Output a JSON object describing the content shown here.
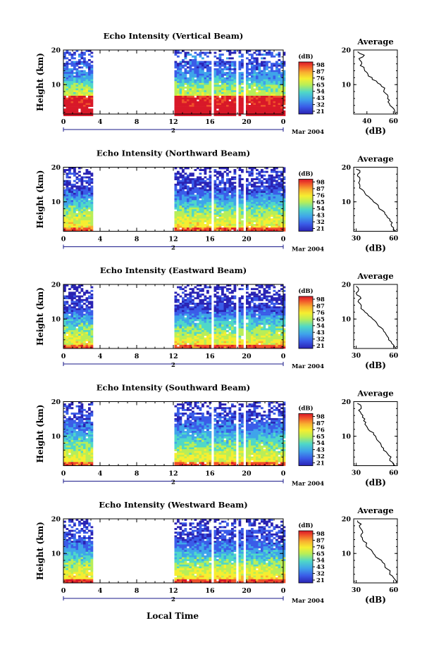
{
  "figure": {
    "month_label": "Mar 2004",
    "bottom_xlabel": "Local Time"
  },
  "chart_data": [
    {
      "type": "heatmap",
      "title": "Echo Intensity (Vertical Beam)",
      "ylabel": "Height (km)",
      "x_ticks": [
        "0",
        "4",
        "8",
        "12",
        "16",
        "20",
        "0"
      ],
      "x_range_hours": [
        0,
        24
      ],
      "y_ticks": [
        "20",
        "10"
      ],
      "ylim_km": [
        1.5,
        20
      ],
      "date_marker": "2",
      "colorbar": {
        "label": "(dB)",
        "ticks": [
          "98",
          "87",
          "76",
          "65",
          "54",
          "43",
          "32",
          "21"
        ]
      },
      "data_gaps_hours": [
        [
          3,
          12
        ],
        [
          16,
          16.3
        ],
        [
          18.7,
          18.9
        ],
        [
          19.4,
          19.7
        ]
      ],
      "profile": {
        "title": "Average",
        "xlabel": "(dB)",
        "x_ticks": [
          "40",
          "60"
        ],
        "xlim": [
          30,
          63
        ],
        "y_ticks": [
          "20",
          "10"
        ],
        "height_km": [
          19.5,
          18.5,
          17.5,
          16.5,
          15.5,
          14.5,
          13.5,
          12.5,
          11.5,
          10.5,
          9.5,
          8.5,
          7.5,
          6.5,
          5.5,
          4.5,
          3.5,
          2.5,
          1.5
        ],
        "dB": [
          33,
          38,
          34,
          36,
          35,
          38,
          40,
          41,
          44,
          48,
          51,
          53,
          54,
          56,
          57,
          57,
          59,
          61,
          62
        ]
      }
    },
    {
      "type": "heatmap",
      "title": "Echo Intensity (Northward Beam)",
      "ylabel": "Height (km)",
      "x_ticks": [
        "0",
        "4",
        "8",
        "12",
        "16",
        "20",
        "0"
      ],
      "x_range_hours": [
        0,
        24
      ],
      "y_ticks": [
        "20",
        "10"
      ],
      "ylim_km": [
        1.5,
        20
      ],
      "date_marker": "2",
      "colorbar": {
        "label": "(dB)",
        "ticks": [
          "98",
          "87",
          "76",
          "65",
          "54",
          "43",
          "32",
          "21"
        ]
      },
      "data_gaps_hours": [
        [
          3,
          12
        ],
        [
          16,
          16.3
        ],
        [
          18.7,
          18.9
        ],
        [
          19.4,
          19.7
        ]
      ],
      "profile": {
        "title": "Average",
        "xlabel": "(dB)",
        "x_ticks": [
          "30",
          "60"
        ],
        "xlim": [
          28,
          63
        ],
        "y_ticks": [
          "20",
          "10"
        ],
        "height_km": [
          19.5,
          18.5,
          17.5,
          16.5,
          15.5,
          14.5,
          13.5,
          12.5,
          11.5,
          10.5,
          9.5,
          8.5,
          7.5,
          6.5,
          5.5,
          4.5,
          3.5,
          2.5,
          1.5
        ],
        "dB": [
          30,
          33,
          31,
          33,
          32,
          33,
          35,
          37,
          40,
          43,
          46,
          48,
          51,
          53,
          55,
          57,
          58,
          60,
          62
        ]
      }
    },
    {
      "type": "heatmap",
      "title": "Echo Intensity (Eastward Beam)",
      "ylabel": "Height (km)",
      "x_ticks": [
        "0",
        "4",
        "8",
        "12",
        "16",
        "20",
        "0"
      ],
      "x_range_hours": [
        0,
        24
      ],
      "y_ticks": [
        "20",
        "10"
      ],
      "ylim_km": [
        1.5,
        20
      ],
      "date_marker": "2",
      "colorbar": {
        "label": "(dB)",
        "ticks": [
          "98",
          "87",
          "76",
          "65",
          "54",
          "43",
          "32",
          "21"
        ]
      },
      "data_gaps_hours": [
        [
          3,
          12
        ],
        [
          16,
          16.3
        ],
        [
          18.7,
          18.9
        ],
        [
          19.4,
          19.7
        ]
      ],
      "profile": {
        "title": "Average",
        "xlabel": "(dB)",
        "x_ticks": [
          "30",
          "60"
        ],
        "xlim": [
          28,
          63
        ],
        "y_ticks": [
          "20",
          "10"
        ],
        "height_km": [
          19.5,
          18.5,
          17.5,
          16.5,
          15.5,
          14.5,
          13.5,
          12.5,
          11.5,
          10.5,
          9.5,
          8.5,
          7.5,
          6.5,
          5.5,
          4.5,
          3.5,
          2.5,
          1.5
        ],
        "dB": [
          30,
          32,
          30,
          33,
          32,
          33,
          34,
          36,
          39,
          42,
          45,
          47,
          50,
          52,
          54,
          56,
          58,
          60,
          62
        ]
      }
    },
    {
      "type": "heatmap",
      "title": "Echo Intensity (Southward Beam)",
      "ylabel": "Height (km)",
      "x_ticks": [
        "0",
        "4",
        "8",
        "12",
        "16",
        "20",
        "0"
      ],
      "x_range_hours": [
        0,
        24
      ],
      "y_ticks": [
        "20",
        "10"
      ],
      "ylim_km": [
        1.5,
        20
      ],
      "date_marker": "2",
      "colorbar": {
        "label": "(dB)",
        "ticks": [
          "98",
          "87",
          "76",
          "65",
          "54",
          "43",
          "32",
          "21"
        ]
      },
      "data_gaps_hours": [
        [
          3,
          12
        ],
        [
          16,
          16.3
        ],
        [
          18.7,
          18.9
        ],
        [
          19.4,
          19.7
        ]
      ],
      "profile": {
        "title": "Average",
        "xlabel": "(dB)",
        "x_ticks": [
          "30",
          "60"
        ],
        "xlim": [
          28,
          63
        ],
        "y_ticks": [
          "20",
          "10"
        ],
        "height_km": [
          19.5,
          18.5,
          17.5,
          16.5,
          15.5,
          14.5,
          13.5,
          12.5,
          11.5,
          10.5,
          9.5,
          8.5,
          7.5,
          6.5,
          5.5,
          4.5,
          3.5,
          2.5,
          1.5
        ],
        "dB": [
          31,
          34,
          32,
          34,
          35,
          36,
          37,
          39,
          41,
          44,
          46,
          48,
          50,
          52,
          54,
          56,
          57,
          59,
          61
        ]
      }
    },
    {
      "type": "heatmap",
      "title": "Echo Intensity (Westward Beam)",
      "ylabel": "Height (km)",
      "x_ticks": [
        "0",
        "4",
        "8",
        "12",
        "16",
        "20",
        "0"
      ],
      "x_range_hours": [
        0,
        24
      ],
      "y_ticks": [
        "20",
        "10"
      ],
      "ylim_km": [
        1.5,
        20
      ],
      "date_marker": "2",
      "colorbar": {
        "label": "(dB)",
        "ticks": [
          "98",
          "87",
          "76",
          "65",
          "54",
          "43",
          "32",
          "21"
        ]
      },
      "data_gaps_hours": [
        [
          3,
          12
        ],
        [
          16,
          16.3
        ],
        [
          18.7,
          18.9
        ],
        [
          19.4,
          19.7
        ]
      ],
      "profile": {
        "title": "Average",
        "xlabel": "(dB)",
        "x_ticks": [
          "30",
          "60"
        ],
        "xlim": [
          28,
          63
        ],
        "y_ticks": [
          "20",
          "10"
        ],
        "height_km": [
          19.5,
          18.5,
          17.5,
          16.5,
          15.5,
          14.5,
          13.5,
          12.5,
          11.5,
          10.5,
          9.5,
          8.5,
          7.5,
          6.5,
          5.5,
          4.5,
          3.5,
          2.5,
          1.5
        ],
        "dB": [
          31,
          34,
          33,
          35,
          34,
          35,
          36,
          38,
          40,
          43,
          45,
          48,
          51,
          53,
          55,
          57,
          59,
          61,
          62
        ]
      }
    }
  ],
  "colors": {
    "scale": [
      "#2a23b4",
      "#3a5ce8",
      "#3fa4ea",
      "#4fd8c8",
      "#b8ee58",
      "#f6ee30",
      "#f8b030",
      "#f0502a",
      "#d81828"
    ],
    "axis": "#000000",
    "background": "#ffffff"
  }
}
